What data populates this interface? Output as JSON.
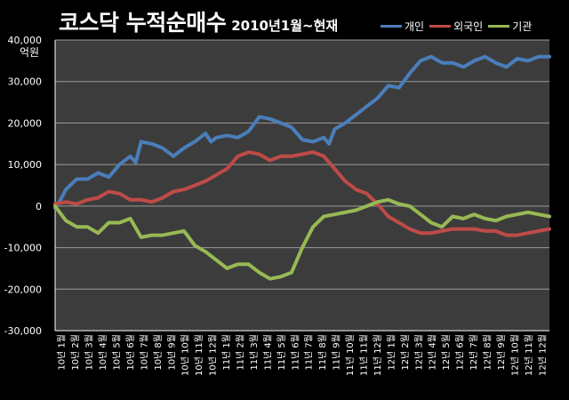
{
  "page": {
    "title_main": "코스닥 누적순매수",
    "title_sub": "2010년1월~현재"
  },
  "chart_data": {
    "type": "line",
    "title": "코스닥 누적순매수 2010년1월~현재",
    "unit_label": "억원",
    "ylim": [
      -30000,
      40000
    ],
    "yticks": [
      -30000,
      -20000,
      -10000,
      0,
      10000,
      20000,
      30000,
      40000
    ],
    "ytick_labels": [
      "-30,000",
      "-20,000",
      "-10,000",
      "0",
      "10,000",
      "20,000",
      "30,000",
      "40,000"
    ],
    "grid": true,
    "legend_position": "top-right",
    "categories": [
      "10년 1월",
      "10년 2월",
      "10년 3월",
      "10년 4월",
      "10년 5월",
      "10년 6월",
      "10년 7월",
      "10년 8월",
      "10년 9월",
      "10년 10월",
      "10년 11월",
      "10년 12월",
      "11년 1월",
      "11년 2월",
      "11년 3월",
      "11년 4월",
      "11년 5월",
      "11년 6월",
      "11년 7월",
      "11년 8월",
      "11년 9월",
      "11년 10월",
      "11년 11월",
      "11년 12월",
      "12년 1월",
      "12년 2월",
      "12년 3월",
      "12년 4월",
      "12년 5월",
      "12년 6월",
      "12년 7월",
      "12년 8월",
      "12년 9월",
      "12년 10월",
      "12년 11월",
      "12년 12월"
    ],
    "series": [
      {
        "name": "개인",
        "color": "#4a7ebb",
        "points": [
          [
            0,
            -500
          ],
          [
            0.5,
            1500
          ],
          [
            1,
            4000
          ],
          [
            2,
            6500
          ],
          [
            3,
            6500
          ],
          [
            4,
            8000
          ],
          [
            5,
            7000
          ],
          [
            6,
            10000
          ],
          [
            7,
            12000
          ],
          [
            7.5,
            10500
          ],
          [
            8,
            15500
          ],
          [
            9,
            15000
          ],
          [
            10,
            14000
          ],
          [
            11,
            12000
          ],
          [
            12,
            14000
          ],
          [
            13,
            15500
          ],
          [
            14,
            17500
          ],
          [
            14.5,
            15500
          ],
          [
            15,
            16500
          ],
          [
            16,
            17000
          ],
          [
            17,
            16500
          ],
          [
            18,
            18000
          ],
          [
            19,
            21500
          ],
          [
            20,
            21000
          ],
          [
            21,
            20000
          ],
          [
            22,
            19000
          ],
          [
            23,
            16000
          ],
          [
            24,
            15500
          ],
          [
            25,
            16500
          ],
          [
            25.5,
            15000
          ],
          [
            26,
            18500
          ],
          [
            27,
            20000
          ],
          [
            28,
            22000
          ],
          [
            29,
            24000
          ],
          [
            30,
            26000
          ],
          [
            31,
            29000
          ],
          [
            32,
            28500
          ],
          [
            33,
            32000
          ],
          [
            34,
            35000
          ],
          [
            35,
            36000
          ],
          [
            36,
            34500
          ],
          [
            37,
            34500
          ],
          [
            38,
            33500
          ],
          [
            39,
            35000
          ],
          [
            40,
            36000
          ],
          [
            41,
            34500
          ],
          [
            42,
            33500
          ],
          [
            43,
            35500
          ],
          [
            44,
            35000
          ],
          [
            45,
            36000
          ],
          [
            46,
            36000
          ]
        ]
      },
      {
        "name": "외국인",
        "color": "#be4b48",
        "points": [
          [
            0,
            500
          ],
          [
            1,
            1000
          ],
          [
            2,
            500
          ],
          [
            3,
            1500
          ],
          [
            4,
            2000
          ],
          [
            5,
            3500
          ],
          [
            6,
            3000
          ],
          [
            7,
            1500
          ],
          [
            8,
            1500
          ],
          [
            9,
            1000
          ],
          [
            10,
            2000
          ],
          [
            11,
            3500
          ],
          [
            12,
            4000
          ],
          [
            13,
            5000
          ],
          [
            14,
            6000
          ],
          [
            15,
            7500
          ],
          [
            16,
            9000
          ],
          [
            17,
            12000
          ],
          [
            18,
            13000
          ],
          [
            19,
            12500
          ],
          [
            20,
            11000
          ],
          [
            21,
            12000
          ],
          [
            22,
            12000
          ],
          [
            23,
            12500
          ],
          [
            24,
            13000
          ],
          [
            25,
            12000
          ],
          [
            26,
            9000
          ],
          [
            27,
            6000
          ],
          [
            28,
            4000
          ],
          [
            29,
            3000
          ],
          [
            30,
            500
          ],
          [
            31,
            -2500
          ],
          [
            32,
            -4000
          ],
          [
            33,
            -5500
          ],
          [
            34,
            -6500
          ],
          [
            35,
            -6500
          ],
          [
            36,
            -6000
          ],
          [
            37,
            -5500
          ],
          [
            38,
            -5500
          ],
          [
            39,
            -5500
          ],
          [
            40,
            -6000
          ],
          [
            41,
            -6000
          ],
          [
            42,
            -7000
          ],
          [
            43,
            -7000
          ],
          [
            44,
            -6500
          ],
          [
            45,
            -6000
          ],
          [
            46,
            -5500
          ]
        ]
      },
      {
        "name": "기관",
        "color": "#98b954",
        "points": [
          [
            0,
            0
          ],
          [
            1,
            -3500
          ],
          [
            2,
            -5000
          ],
          [
            3,
            -5000
          ],
          [
            4,
            -6500
          ],
          [
            5,
            -4000
          ],
          [
            6,
            -4000
          ],
          [
            7,
            -3000
          ],
          [
            8,
            -7500
          ],
          [
            9,
            -7000
          ],
          [
            10,
            -7000
          ],
          [
            11,
            -6500
          ],
          [
            12,
            -6000
          ],
          [
            13,
            -9500
          ],
          [
            14,
            -11000
          ],
          [
            15,
            -13000
          ],
          [
            16,
            -15000
          ],
          [
            17,
            -14000
          ],
          [
            18,
            -14000
          ],
          [
            19,
            -16000
          ],
          [
            20,
            -17500
          ],
          [
            21,
            -17000
          ],
          [
            22,
            -16000
          ],
          [
            23,
            -10000
          ],
          [
            24,
            -5000
          ],
          [
            25,
            -2500
          ],
          [
            26,
            -2000
          ],
          [
            27,
            -1500
          ],
          [
            28,
            -1000
          ],
          [
            29,
            0
          ],
          [
            30,
            1000
          ],
          [
            31,
            1500
          ],
          [
            32,
            500
          ],
          [
            33,
            0
          ],
          [
            34,
            -2000
          ],
          [
            35,
            -4000
          ],
          [
            36,
            -5000
          ],
          [
            37,
            -2500
          ],
          [
            38,
            -3000
          ],
          [
            39,
            -2000
          ],
          [
            40,
            -3000
          ],
          [
            41,
            -3500
          ],
          [
            42,
            -2500
          ],
          [
            43,
            -2000
          ],
          [
            44,
            -1500
          ],
          [
            45,
            -2000
          ],
          [
            46,
            -2500
          ]
        ]
      }
    ]
  }
}
